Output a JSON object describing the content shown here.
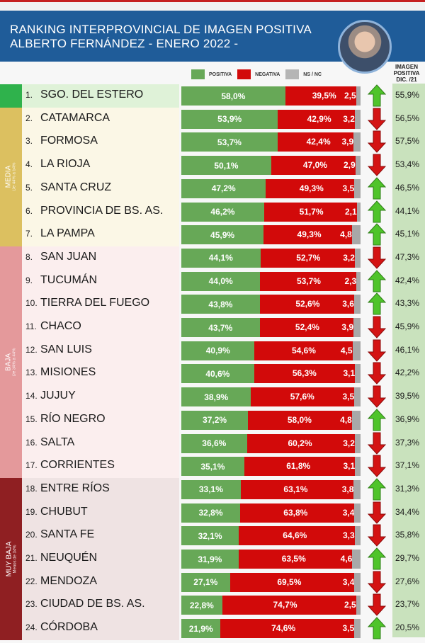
{
  "header": {
    "title_line1": "RANKING INTERPROVINCIAL DE IMAGEN POSITIVA",
    "title_line2": "ALBERTO FERNÁNDEZ  - ENERO 2022 -"
  },
  "legend": [
    {
      "label": "POSITIVA",
      "color": "#67a857"
    },
    {
      "label": "NEGATIVA",
      "color": "#d20a0a"
    },
    {
      "label": "NS / NC",
      "color": "#b5b5b5"
    }
  ],
  "prev_header": {
    "line1": "IMAGEN",
    "line2": "POSITIVA",
    "line3": "DIC. /21"
  },
  "categories": [
    {
      "name": "",
      "sub": "",
      "color": "#2fb24c",
      "bg": "#dff2d8",
      "from": 0,
      "to": 0
    },
    {
      "name": "MEDIA",
      "sub": "De 44% a 54%",
      "color": "#dcc060",
      "bg": "#fbf7e6",
      "from": 1,
      "to": 6
    },
    {
      "name": "BAJA",
      "sub": "De 34% a 44%",
      "color": "#e4999b",
      "bg": "#fbeeee",
      "from": 7,
      "to": 16
    },
    {
      "name": "MUY BAJA",
      "sub": "Menos de 34%",
      "color": "#8f1f22",
      "bg": "#efe3e3",
      "from": 17,
      "to": 23
    }
  ],
  "chart_data": {
    "type": "bar",
    "stacked": true,
    "orientation": "horizontal",
    "title": "RANKING INTERPROVINCIAL DE IMAGEN POSITIVA ALBERTO FERNÁNDEZ - ENERO 2022 -",
    "series_names": [
      "POSITIVA",
      "NEGATIVA",
      "NS / NC"
    ],
    "extra_column": "IMAGEN POSITIVA DIC. /21",
    "rows": [
      {
        "rank": "1.",
        "province": "SGO. DEL ESTERO",
        "pos": 58.0,
        "neg": 39.5,
        "ns": 2.5,
        "pos_label": "58,0%",
        "neg_label": "39,5%",
        "ns_label": "2,5",
        "trend": "up",
        "prev": "55,9%"
      },
      {
        "rank": "2.",
        "province": "CATAMARCA",
        "pos": 53.9,
        "neg": 42.9,
        "ns": 3.2,
        "pos_label": "53,9%",
        "neg_label": "42,9%",
        "ns_label": "3,2",
        "trend": "down",
        "prev": "56,5%"
      },
      {
        "rank": "3.",
        "province": "FORMOSA",
        "pos": 53.7,
        "neg": 42.4,
        "ns": 3.9,
        "pos_label": "53,7%",
        "neg_label": "42,4%",
        "ns_label": "3,9",
        "trend": "down",
        "prev": "57,5%"
      },
      {
        "rank": "4.",
        "province": "LA RIOJA",
        "pos": 50.1,
        "neg": 47.0,
        "ns": 2.9,
        "pos_label": "50,1%",
        "neg_label": "47,0%",
        "ns_label": "2,9",
        "trend": "down",
        "prev": "53,4%"
      },
      {
        "rank": "5.",
        "province": "SANTA CRUZ",
        "pos": 47.2,
        "neg": 49.3,
        "ns": 3.5,
        "pos_label": "47,2%",
        "neg_label": "49,3%",
        "ns_label": "3,5",
        "trend": "up",
        "prev": "46,5%"
      },
      {
        "rank": "6.",
        "province": "PROVINCIA DE BS. AS.",
        "pos": 46.2,
        "neg": 51.7,
        "ns": 2.1,
        "pos_label": "46,2%",
        "neg_label": "51,7%",
        "ns_label": "2,1",
        "trend": "up",
        "prev": "44,1%"
      },
      {
        "rank": "7.",
        "province": "LA PAMPA",
        "pos": 45.9,
        "neg": 49.3,
        "ns": 4.8,
        "pos_label": "45,9%",
        "neg_label": "49,3%",
        "ns_label": "4,8",
        "trend": "up",
        "prev": "45,1%"
      },
      {
        "rank": "8.",
        "province": "SAN JUAN",
        "pos": 44.1,
        "neg": 52.7,
        "ns": 3.2,
        "pos_label": "44,1%",
        "neg_label": "52,7%",
        "ns_label": "3,2",
        "trend": "down",
        "prev": "47,3%"
      },
      {
        "rank": "9.",
        "province": "TUCUMÁN",
        "pos": 44.0,
        "neg": 53.7,
        "ns": 2.3,
        "pos_label": "44,0%",
        "neg_label": "53,7%",
        "ns_label": "2,3",
        "trend": "up",
        "prev": "42,4%"
      },
      {
        "rank": "10.",
        "province": "TIERRA DEL FUEGO",
        "pos": 43.8,
        "neg": 52.6,
        "ns": 3.6,
        "pos_label": "43,8%",
        "neg_label": "52,6%",
        "ns_label": "3,6",
        "trend": "up",
        "prev": "43,3%"
      },
      {
        "rank": "11.",
        "province": "CHACO",
        "pos": 43.7,
        "neg": 52.4,
        "ns": 3.9,
        "pos_label": "43,7%",
        "neg_label": "52,4%",
        "ns_label": "3,9",
        "trend": "down",
        "prev": "45,9%"
      },
      {
        "rank": "12.",
        "province": "SAN LUIS",
        "pos": 40.9,
        "neg": 54.6,
        "ns": 4.5,
        "pos_label": "40,9%",
        "neg_label": "54,6%",
        "ns_label": "4,5",
        "trend": "down",
        "prev": "46,1%"
      },
      {
        "rank": "13.",
        "province": "MISIONES",
        "pos": 40.6,
        "neg": 56.3,
        "ns": 3.1,
        "pos_label": "40,6%",
        "neg_label": "56,3%",
        "ns_label": "3,1",
        "trend": "down",
        "prev": "42,2%"
      },
      {
        "rank": "14.",
        "province": "JUJUY",
        "pos": 38.9,
        "neg": 57.6,
        "ns": 3.5,
        "pos_label": "38,9%",
        "neg_label": "57,6%",
        "ns_label": "3,5",
        "trend": "down",
        "prev": "39,5%"
      },
      {
        "rank": "15.",
        "province": "RÍO NEGRO",
        "pos": 37.2,
        "neg": 58.0,
        "ns": 4.8,
        "pos_label": "37,2%",
        "neg_label": "58,0%",
        "ns_label": "4,8",
        "trend": "up",
        "prev": "36,9%"
      },
      {
        "rank": "16.",
        "province": "SALTA",
        "pos": 36.6,
        "neg": 60.2,
        "ns": 3.2,
        "pos_label": "36,6%",
        "neg_label": "60,2%",
        "ns_label": "3,2",
        "trend": "down",
        "prev": "37,3%"
      },
      {
        "rank": "17.",
        "province": "CORRIENTES",
        "pos": 35.1,
        "neg": 61.8,
        "ns": 3.1,
        "pos_label": "35,1%",
        "neg_label": "61,8%",
        "ns_label": "3,1",
        "trend": "down",
        "prev": "37,1%"
      },
      {
        "rank": "18.",
        "province": "ENTRE RÍOS",
        "pos": 33.1,
        "neg": 63.1,
        "ns": 3.8,
        "pos_label": "33,1%",
        "neg_label": "63,1%",
        "ns_label": "3,8",
        "trend": "up",
        "prev": "31,3%"
      },
      {
        "rank": "19.",
        "province": "CHUBUT",
        "pos": 32.8,
        "neg": 63.8,
        "ns": 3.4,
        "pos_label": "32,8%",
        "neg_label": "63,8%",
        "ns_label": "3,4",
        "trend": "down",
        "prev": "34,4%"
      },
      {
        "rank": "20.",
        "province": "SANTA FE",
        "pos": 32.1,
        "neg": 64.6,
        "ns": 3.3,
        "pos_label": "32,1%",
        "neg_label": "64,6%",
        "ns_label": "3,3",
        "trend": "down",
        "prev": "35,8%"
      },
      {
        "rank": "21.",
        "province": "NEUQUÉN",
        "pos": 31.9,
        "neg": 63.5,
        "ns": 4.6,
        "pos_label": "31,9%",
        "neg_label": "63,5%",
        "ns_label": "4,6",
        "trend": "up",
        "prev": "29,7%"
      },
      {
        "rank": "22.",
        "province": "MENDOZA",
        "pos": 27.1,
        "neg": 69.5,
        "ns": 3.4,
        "pos_label": "27,1%",
        "neg_label": "69,5%",
        "ns_label": "3,4",
        "trend": "down",
        "prev": "27,6%"
      },
      {
        "rank": "23.",
        "province": "CIUDAD DE BS. AS.",
        "pos": 22.8,
        "neg": 74.7,
        "ns": 2.5,
        "pos_label": "22,8%",
        "neg_label": "74,7%",
        "ns_label": "2,5",
        "trend": "down",
        "prev": "23,7%"
      },
      {
        "rank": "24.",
        "province": "CÓRDOBA",
        "pos": 21.9,
        "neg": 74.6,
        "ns": 3.5,
        "pos_label": "21,9%",
        "neg_label": "74,6%",
        "ns_label": "3,5",
        "trend": "up",
        "prev": "20,5%"
      }
    ]
  }
}
